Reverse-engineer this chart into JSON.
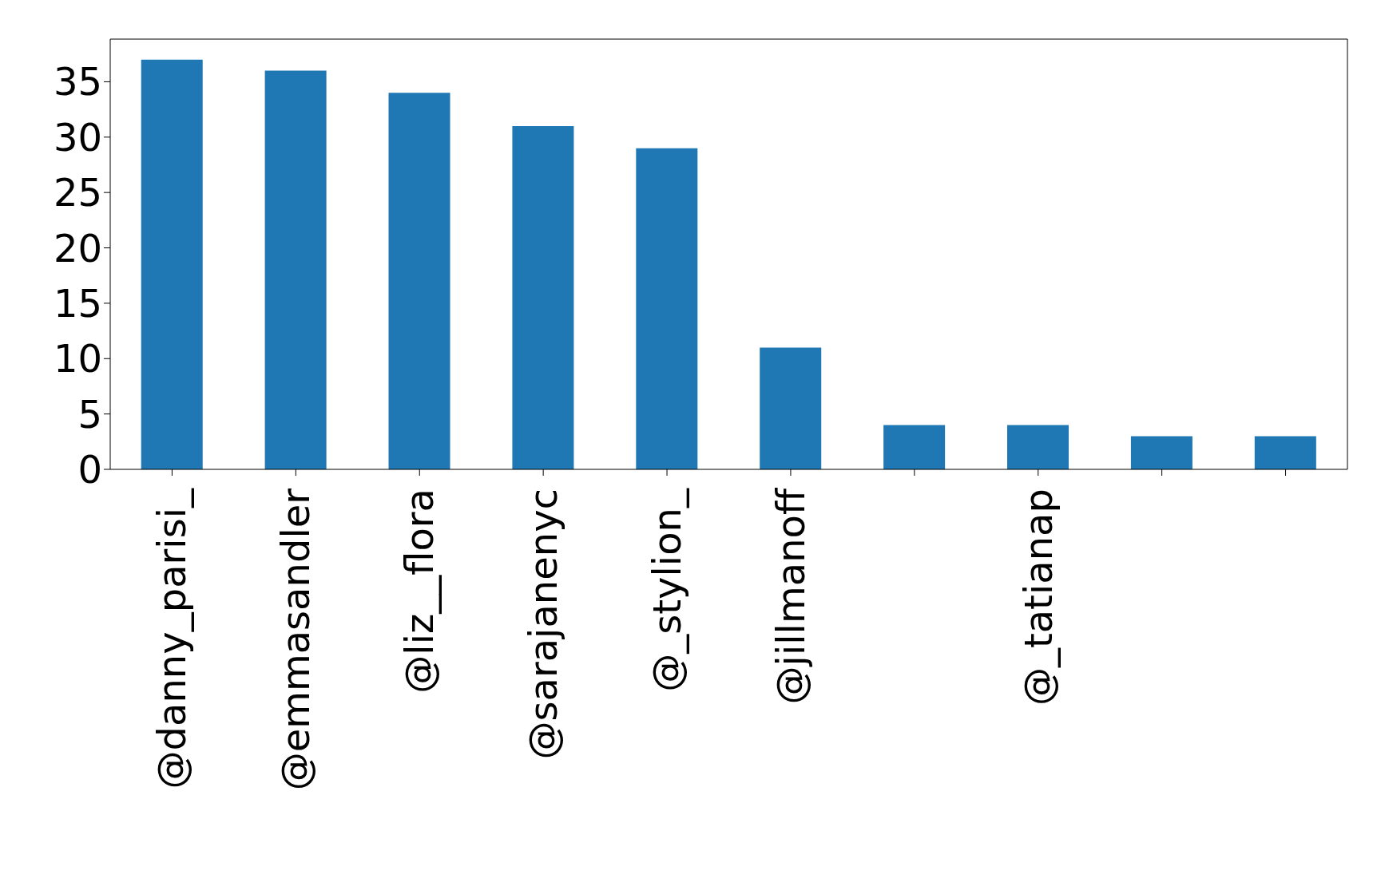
{
  "chart_data": {
    "type": "bar",
    "categories": [
      "@danny_parisi_",
      "@emmasandler",
      "@liz__flora",
      "@sarajanenyc",
      "@_stylion_",
      "@jillmanoff",
      null,
      "@_tatianap",
      null,
      null
    ],
    "values": [
      37,
      36,
      34,
      31,
      29,
      11,
      4,
      4,
      3,
      3
    ],
    "color": "#1f77b4",
    "ylim": [
      0,
      38.85
    ],
    "yticks": [
      0,
      5,
      10,
      15,
      20,
      25,
      30,
      35
    ],
    "grid": false
  }
}
